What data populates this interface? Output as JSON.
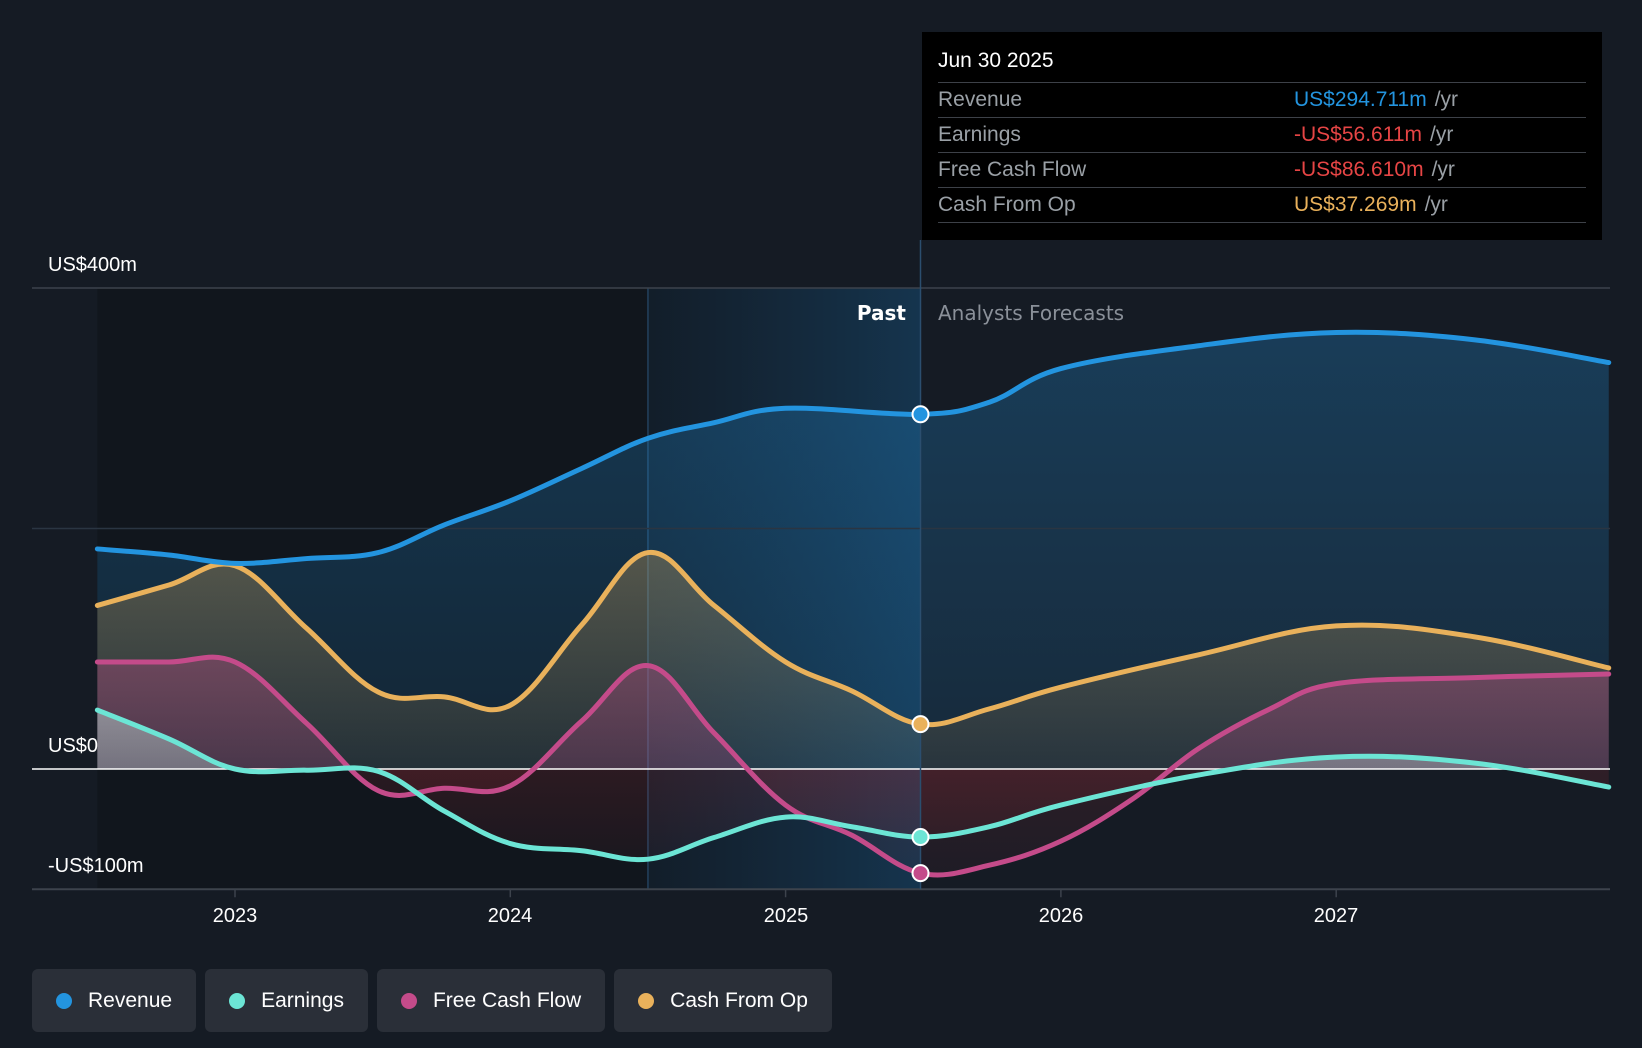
{
  "tooltip": {
    "date": "Jun 30 2025",
    "unit": "/yr",
    "rows": [
      {
        "label": "Revenue",
        "value": "US$294.711m",
        "color": "#2394df"
      },
      {
        "label": "Earnings",
        "value": "-US$56.611m",
        "color": "#e64545"
      },
      {
        "label": "Free Cash Flow",
        "value": "-US$86.610m",
        "color": "#e64545"
      },
      {
        "label": "Cash From Op",
        "value": "US$37.269m",
        "color": "#e9b15b"
      }
    ]
  },
  "legend": [
    {
      "label": "Revenue",
      "color": "#2394df"
    },
    {
      "label": "Earnings",
      "color": "#6ce5d5"
    },
    {
      "label": "Free Cash Flow",
      "color": "#c44b8a"
    },
    {
      "label": "Cash From Op",
      "color": "#e9b15b"
    }
  ],
  "chart_data": {
    "type": "area",
    "title": "",
    "xlabel": "",
    "ylabel": "",
    "y_tick_labels": [
      {
        "value": 400,
        "label": "US$400m"
      },
      {
        "value": 0,
        "label": "US$0"
      },
      {
        "value": -100,
        "label": "-US$100m"
      }
    ],
    "x_tick_labels": [
      {
        "value": 2023,
        "label": "2023"
      },
      {
        "value": 2024,
        "label": "2024"
      },
      {
        "value": 2025,
        "label": "2025"
      },
      {
        "value": 2026,
        "label": "2026"
      },
      {
        "value": 2027,
        "label": "2027"
      }
    ],
    "xlim": [
      2022.26,
      2027.99
    ],
    "ylim": [
      -100,
      400
    ],
    "gridlines": [
      400,
      200
    ],
    "past_label": "Past",
    "forecast_label": "Analysts Forecasts",
    "divider_x": 2025.49,
    "shaded_past_start": 2024.5,
    "highlight_x": 2025.49,
    "series": [
      {
        "name": "Revenue",
        "color": "#2394df",
        "x": [
          2022.5,
          2022.76,
          2023.0,
          2023.26,
          2023.52,
          2023.76,
          2024.0,
          2024.26,
          2024.5,
          2024.74,
          2025.0,
          2025.49,
          2025.74,
          2026.0,
          2026.5,
          2027.0,
          2027.5,
          2027.99
        ],
        "values": [
          183,
          178,
          171,
          175,
          180,
          203,
          223,
          250,
          275,
          288,
          300,
          295,
          305,
          333,
          352,
          363,
          357,
          338
        ]
      },
      {
        "name": "Earnings",
        "color": "#6ce5d5",
        "x": [
          2022.5,
          2022.76,
          2023.0,
          2023.26,
          2023.52,
          2023.76,
          2024.0,
          2024.26,
          2024.5,
          2024.74,
          2025.0,
          2025.24,
          2025.49,
          2025.74,
          2026.0,
          2026.5,
          2027.0,
          2027.5,
          2027.99
        ],
        "values": [
          49,
          25,
          0,
          -1,
          -2,
          -35,
          -62,
          -68,
          -75,
          -57,
          -40,
          -48,
          -56.6,
          -48,
          -30,
          -5,
          10,
          5,
          -15
        ]
      },
      {
        "name": "Free Cash Flow",
        "color": "#c44b8a",
        "x": [
          2022.5,
          2022.76,
          2023.0,
          2023.26,
          2023.52,
          2023.76,
          2024.0,
          2024.26,
          2024.5,
          2024.74,
          2025.0,
          2025.24,
          2025.49,
          2025.74,
          2026.0,
          2026.26,
          2026.5,
          2026.76,
          2027.0,
          2027.5,
          2027.99
        ],
        "values": [
          89,
          89,
          89,
          38,
          -18,
          -16,
          -14,
          40,
          86,
          30,
          -30,
          -55,
          -86.6,
          -80,
          -60,
          -25,
          17,
          50,
          71,
          76,
          79
        ]
      },
      {
        "name": "Cash From Op",
        "color": "#e9b15b",
        "x": [
          2022.5,
          2022.76,
          2023.0,
          2023.26,
          2023.52,
          2023.76,
          2024.0,
          2024.26,
          2024.5,
          2024.74,
          2025.0,
          2025.24,
          2025.49,
          2025.74,
          2026.0,
          2026.5,
          2027.0,
          2027.5,
          2027.99
        ],
        "values": [
          136,
          153,
          169,
          117,
          64,
          60,
          53,
          120,
          180,
          136,
          89,
          65,
          37.3,
          50,
          68,
          95,
          119,
          110,
          84
        ]
      }
    ]
  }
}
